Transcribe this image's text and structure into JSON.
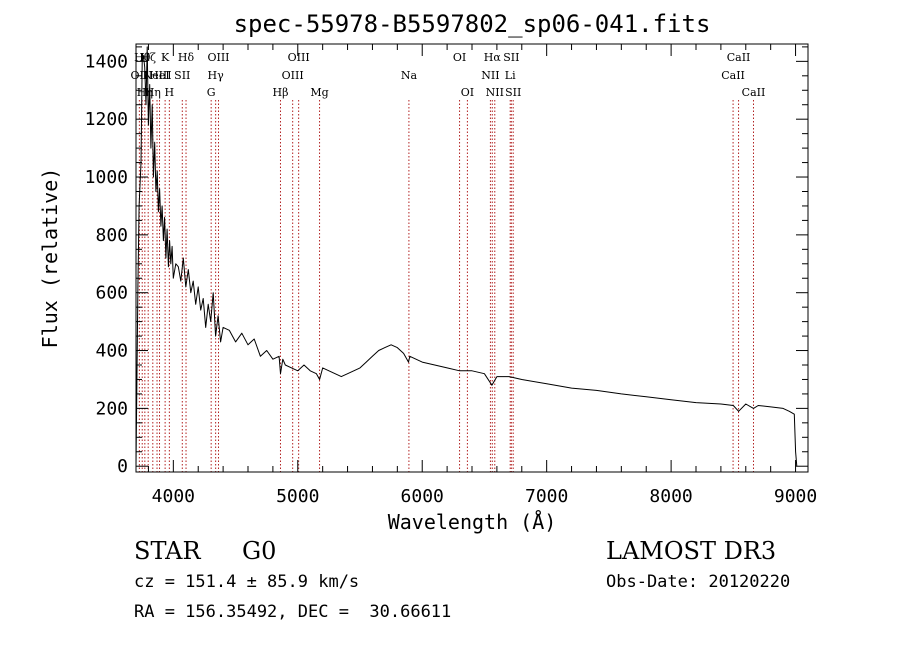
{
  "chart_data": {
    "type": "line",
    "title": "spec-55978-B5597802_sp06-041.fits",
    "xlabel": "Wavelength (Å)",
    "ylabel": "Flux (relative)",
    "xlim": [
      3700,
      9100
    ],
    "ylim": [
      -20,
      1460
    ],
    "x_ticks": [
      4000,
      5000,
      6000,
      7000,
      8000,
      9000
    ],
    "x_tick_labels": [
      "4000",
      "5000",
      "6000",
      "7000",
      "8000",
      "9000"
    ],
    "y_ticks": [
      0,
      200,
      400,
      600,
      800,
      1000,
      1200,
      1400
    ],
    "y_tick_labels": [
      "0",
      "200",
      "400",
      "600",
      "800",
      "1000",
      "1200",
      "1400"
    ],
    "grid": false,
    "series": [
      {
        "name": "flux",
        "x": [
          3700,
          3715,
          3725,
          3740,
          3750,
          3760,
          3770,
          3780,
          3790,
          3800,
          3810,
          3820,
          3830,
          3840,
          3850,
          3860,
          3870,
          3880,
          3890,
          3900,
          3910,
          3920,
          3930,
          3940,
          3950,
          3960,
          3970,
          3980,
          3990,
          4000,
          4020,
          4040,
          4060,
          4080,
          4100,
          4120,
          4140,
          4160,
          4180,
          4200,
          4220,
          4240,
          4260,
          4280,
          4300,
          4320,
          4340,
          4360,
          4380,
          4400,
          4450,
          4500,
          4550,
          4600,
          4650,
          4700,
          4750,
          4800,
          4850,
          4861,
          4880,
          4900,
          4950,
          5000,
          5050,
          5100,
          5150,
          5175,
          5200,
          5250,
          5300,
          5350,
          5400,
          5450,
          5500,
          5550,
          5600,
          5650,
          5700,
          5750,
          5800,
          5850,
          5890,
          5900,
          5950,
          6000,
          6100,
          6200,
          6300,
          6400,
          6500,
          6560,
          6600,
          6700,
          6800,
          7000,
          7200,
          7400,
          7600,
          7800,
          8000,
          8200,
          8400,
          8500,
          8542,
          8600,
          8662,
          8700,
          8800,
          8900,
          8950,
          8990,
          9000,
          9010
        ],
        "values": [
          0,
          620,
          900,
          1050,
          1400,
          1420,
          1380,
          1250,
          1450,
          1180,
          1320,
          1100,
          1250,
          1000,
          1120,
          950,
          1020,
          880,
          960,
          830,
          900,
          780,
          860,
          720,
          820,
          690,
          780,
          700,
          760,
          650,
          700,
          690,
          640,
          720,
          620,
          680,
          600,
          640,
          560,
          620,
          540,
          580,
          480,
          560,
          500,
          600,
          450,
          520,
          430,
          480,
          470,
          430,
          460,
          420,
          440,
          380,
          400,
          370,
          380,
          320,
          370,
          350,
          340,
          330,
          350,
          330,
          320,
          300,
          340,
          330,
          320,
          310,
          320,
          330,
          340,
          360,
          380,
          400,
          410,
          420,
          410,
          390,
          360,
          380,
          370,
          360,
          350,
          340,
          330,
          330,
          320,
          280,
          310,
          310,
          300,
          285,
          270,
          262,
          250,
          240,
          230,
          220,
          215,
          210,
          190,
          215,
          200,
          210,
          205,
          200,
          190,
          180,
          50,
          0
        ]
      }
    ],
    "lines": [
      {
        "x": 3727,
        "label": "OII",
        "row": 2
      },
      {
        "x": 3750,
        "label": "Hθ",
        "row": 1
      },
      {
        "x": 3771,
        "label": "Hη",
        "row": 3
      },
      {
        "x": 3798,
        "label": "Hζ",
        "row": 1
      },
      {
        "x": 3835,
        "label": "Hη",
        "row": 3
      },
      {
        "x": 3869,
        "label": "NeIII",
        "row": 2
      },
      {
        "x": 3889,
        "label": "HeI",
        "row": 2
      },
      {
        "x": 3934,
        "label": "K",
        "row": 1
      },
      {
        "x": 3968,
        "label": "H",
        "row": 3
      },
      {
        "x": 4072,
        "label": "SII",
        "row": 2
      },
      {
        "x": 4102,
        "label": "Hδ",
        "row": 1
      },
      {
        "x": 4304,
        "label": "G",
        "row": 3
      },
      {
        "x": 4340,
        "label": "Hγ",
        "row": 2
      },
      {
        "x": 4363,
        "label": "OIII",
        "row": 1
      },
      {
        "x": 4861,
        "label": "Hβ",
        "row": 3
      },
      {
        "x": 4959,
        "label": "OIII",
        "row": 2
      },
      {
        "x": 5007,
        "label": "OIII",
        "row": 1
      },
      {
        "x": 5175,
        "label": "Mg",
        "row": 3
      },
      {
        "x": 5893,
        "label": "Na",
        "row": 2
      },
      {
        "x": 6300,
        "label": "OI",
        "row": 1
      },
      {
        "x": 6363,
        "label": "OI",
        "row": 3
      },
      {
        "x": 6548,
        "label": "NII",
        "row": 2
      },
      {
        "x": 6563,
        "label": "Hα",
        "row": 1
      },
      {
        "x": 6583,
        "label": "NII",
        "row": 3
      },
      {
        "x": 6707,
        "label": "Li",
        "row": 2
      },
      {
        "x": 6716,
        "label": "SII",
        "row": 1
      },
      {
        "x": 6731,
        "label": "SII",
        "row": 3
      },
      {
        "x": 8498,
        "label": "CaII",
        "row": 2
      },
      {
        "x": 8542,
        "label": "CaII",
        "row": 1
      },
      {
        "x": 8662,
        "label": "CaII",
        "row": 3
      }
    ]
  },
  "info": {
    "object_class": "STAR",
    "subclass": "G0",
    "survey": "LAMOST DR3",
    "cz": "cz = 151.4 ± 85.9 km/s",
    "obs_date": "Obs-Date: 20120220",
    "coords": "RA = 156.35492, DEC =  30.66611"
  },
  "colors": {
    "line_marker": "#b22222",
    "spectrum": "#000000",
    "axes": "#000000",
    "background": "#ffffff"
  }
}
